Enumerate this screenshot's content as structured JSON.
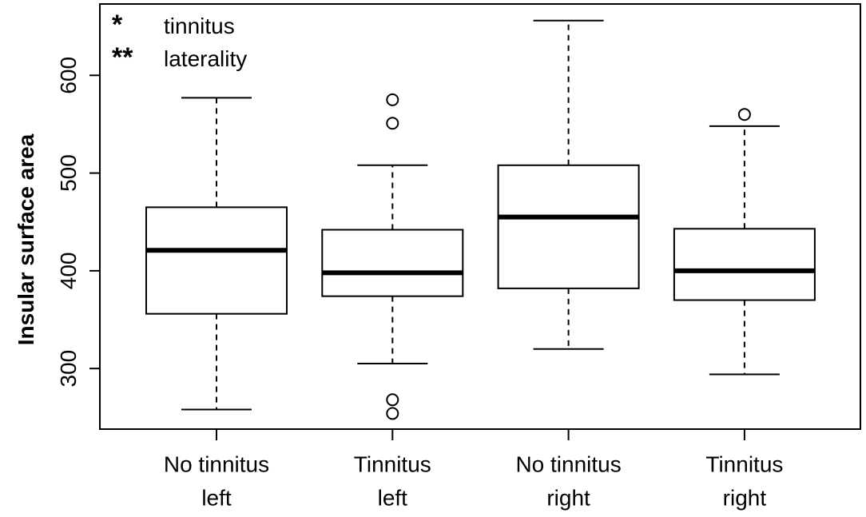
{
  "chart_data": {
    "type": "box",
    "y_label": "Insular surface area",
    "categories": [
      [
        "No tinnitus",
        "left"
      ],
      [
        "Tinnitus",
        "left"
      ],
      [
        "No tinnitus",
        "right"
      ],
      [
        "Tinnitus",
        "right"
      ]
    ],
    "boxes": [
      {
        "whislo": 258,
        "q1": 356,
        "med": 421,
        "q3": 465,
        "whishi": 577,
        "fliers": []
      },
      {
        "whislo": 305,
        "q1": 374,
        "med": 398,
        "q3": 442,
        "whishi": 508,
        "fliers": [
          575,
          551,
          268,
          254
        ]
      },
      {
        "whislo": 320,
        "q1": 382,
        "med": 455,
        "q3": 508,
        "whishi": 656,
        "fliers": []
      },
      {
        "whislo": 294,
        "q1": 370,
        "med": 400,
        "q3": 443,
        "whishi": 548,
        "fliers": [
          560
        ]
      }
    ],
    "ylim": [
      238,
      673
    ],
    "yticks": [
      300,
      400,
      500,
      600
    ],
    "annotations": [
      {
        "symbol": "*",
        "label": "tinnitus"
      },
      {
        "symbol": "**",
        "label": "laterality"
      }
    ]
  }
}
